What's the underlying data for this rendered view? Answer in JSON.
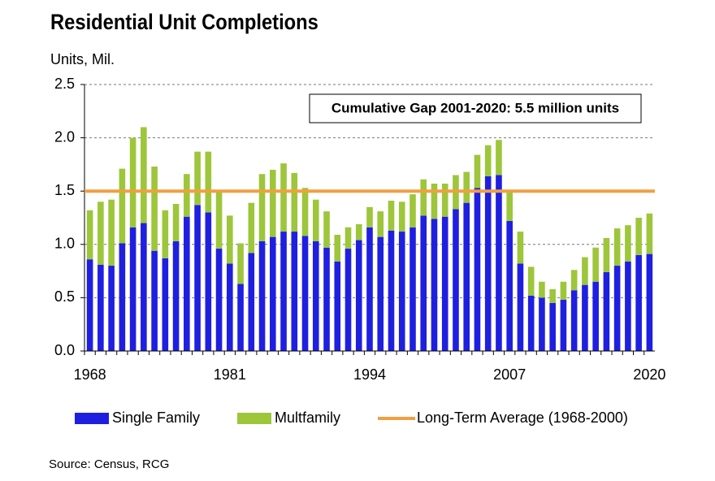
{
  "chart_data": {
    "type": "stacked_bar",
    "title": "Residential Unit Completions",
    "y_label": "Units, Mil.",
    "annotation": "Cumulative Gap 2001-2020: 5.5 million units",
    "source": "Source: Census, RCG",
    "categories": [
      "1968",
      null,
      null,
      null,
      null,
      null,
      null,
      null,
      null,
      null,
      null,
      null,
      null,
      "1981",
      null,
      null,
      null,
      null,
      null,
      null,
      null,
      null,
      null,
      null,
      null,
      null,
      "1994",
      null,
      null,
      null,
      null,
      null,
      null,
      null,
      null,
      null,
      null,
      null,
      null,
      "2007",
      null,
      null,
      null,
      null,
      null,
      null,
      null,
      null,
      null,
      null,
      null,
      null,
      "2020"
    ],
    "series": [
      {
        "name": "Single Family",
        "color": "#1f1fe0",
        "values": [
          0.86,
          0.81,
          0.8,
          1.01,
          1.16,
          1.2,
          0.94,
          0.87,
          1.03,
          1.26,
          1.37,
          1.3,
          0.96,
          0.82,
          0.63,
          0.92,
          1.03,
          1.07,
          1.12,
          1.12,
          1.08,
          1.03,
          0.97,
          0.84,
          0.96,
          1.04,
          1.16,
          1.07,
          1.13,
          1.12,
          1.16,
          1.27,
          1.24,
          1.26,
          1.33,
          1.39,
          1.53,
          1.64,
          1.65,
          1.22,
          0.82,
          0.52,
          0.5,
          0.45,
          0.48,
          0.57,
          0.62,
          0.65,
          0.74,
          0.8,
          0.84,
          0.9,
          0.91
        ]
      },
      {
        "name": "Multfamily",
        "color": "#9dc63b",
        "values": [
          0.46,
          0.59,
          0.62,
          0.7,
          0.84,
          0.9,
          0.79,
          0.45,
          0.35,
          0.4,
          0.5,
          0.57,
          0.54,
          0.45,
          0.38,
          0.47,
          0.63,
          0.63,
          0.64,
          0.55,
          0.45,
          0.39,
          0.34,
          0.25,
          0.2,
          0.15,
          0.19,
          0.24,
          0.28,
          0.28,
          0.31,
          0.34,
          0.33,
          0.31,
          0.32,
          0.29,
          0.31,
          0.29,
          0.33,
          0.28,
          0.3,
          0.27,
          0.15,
          0.13,
          0.17,
          0.19,
          0.26,
          0.32,
          0.32,
          0.35,
          0.34,
          0.35,
          0.38
        ]
      }
    ],
    "reference_line": {
      "name": "Long-Term Average (1968-2000)",
      "value": 1.5,
      "color": "#f0a040"
    },
    "ylim": [
      0,
      2.5
    ],
    "yticks": [
      {
        "value": 0,
        "label": "0.0"
      },
      0.5,
      {
        "value": 1,
        "label": "1.0"
      },
      1.5,
      {
        "value": 2,
        "label": "2.0"
      },
      2.5
    ],
    "grid": true
  }
}
